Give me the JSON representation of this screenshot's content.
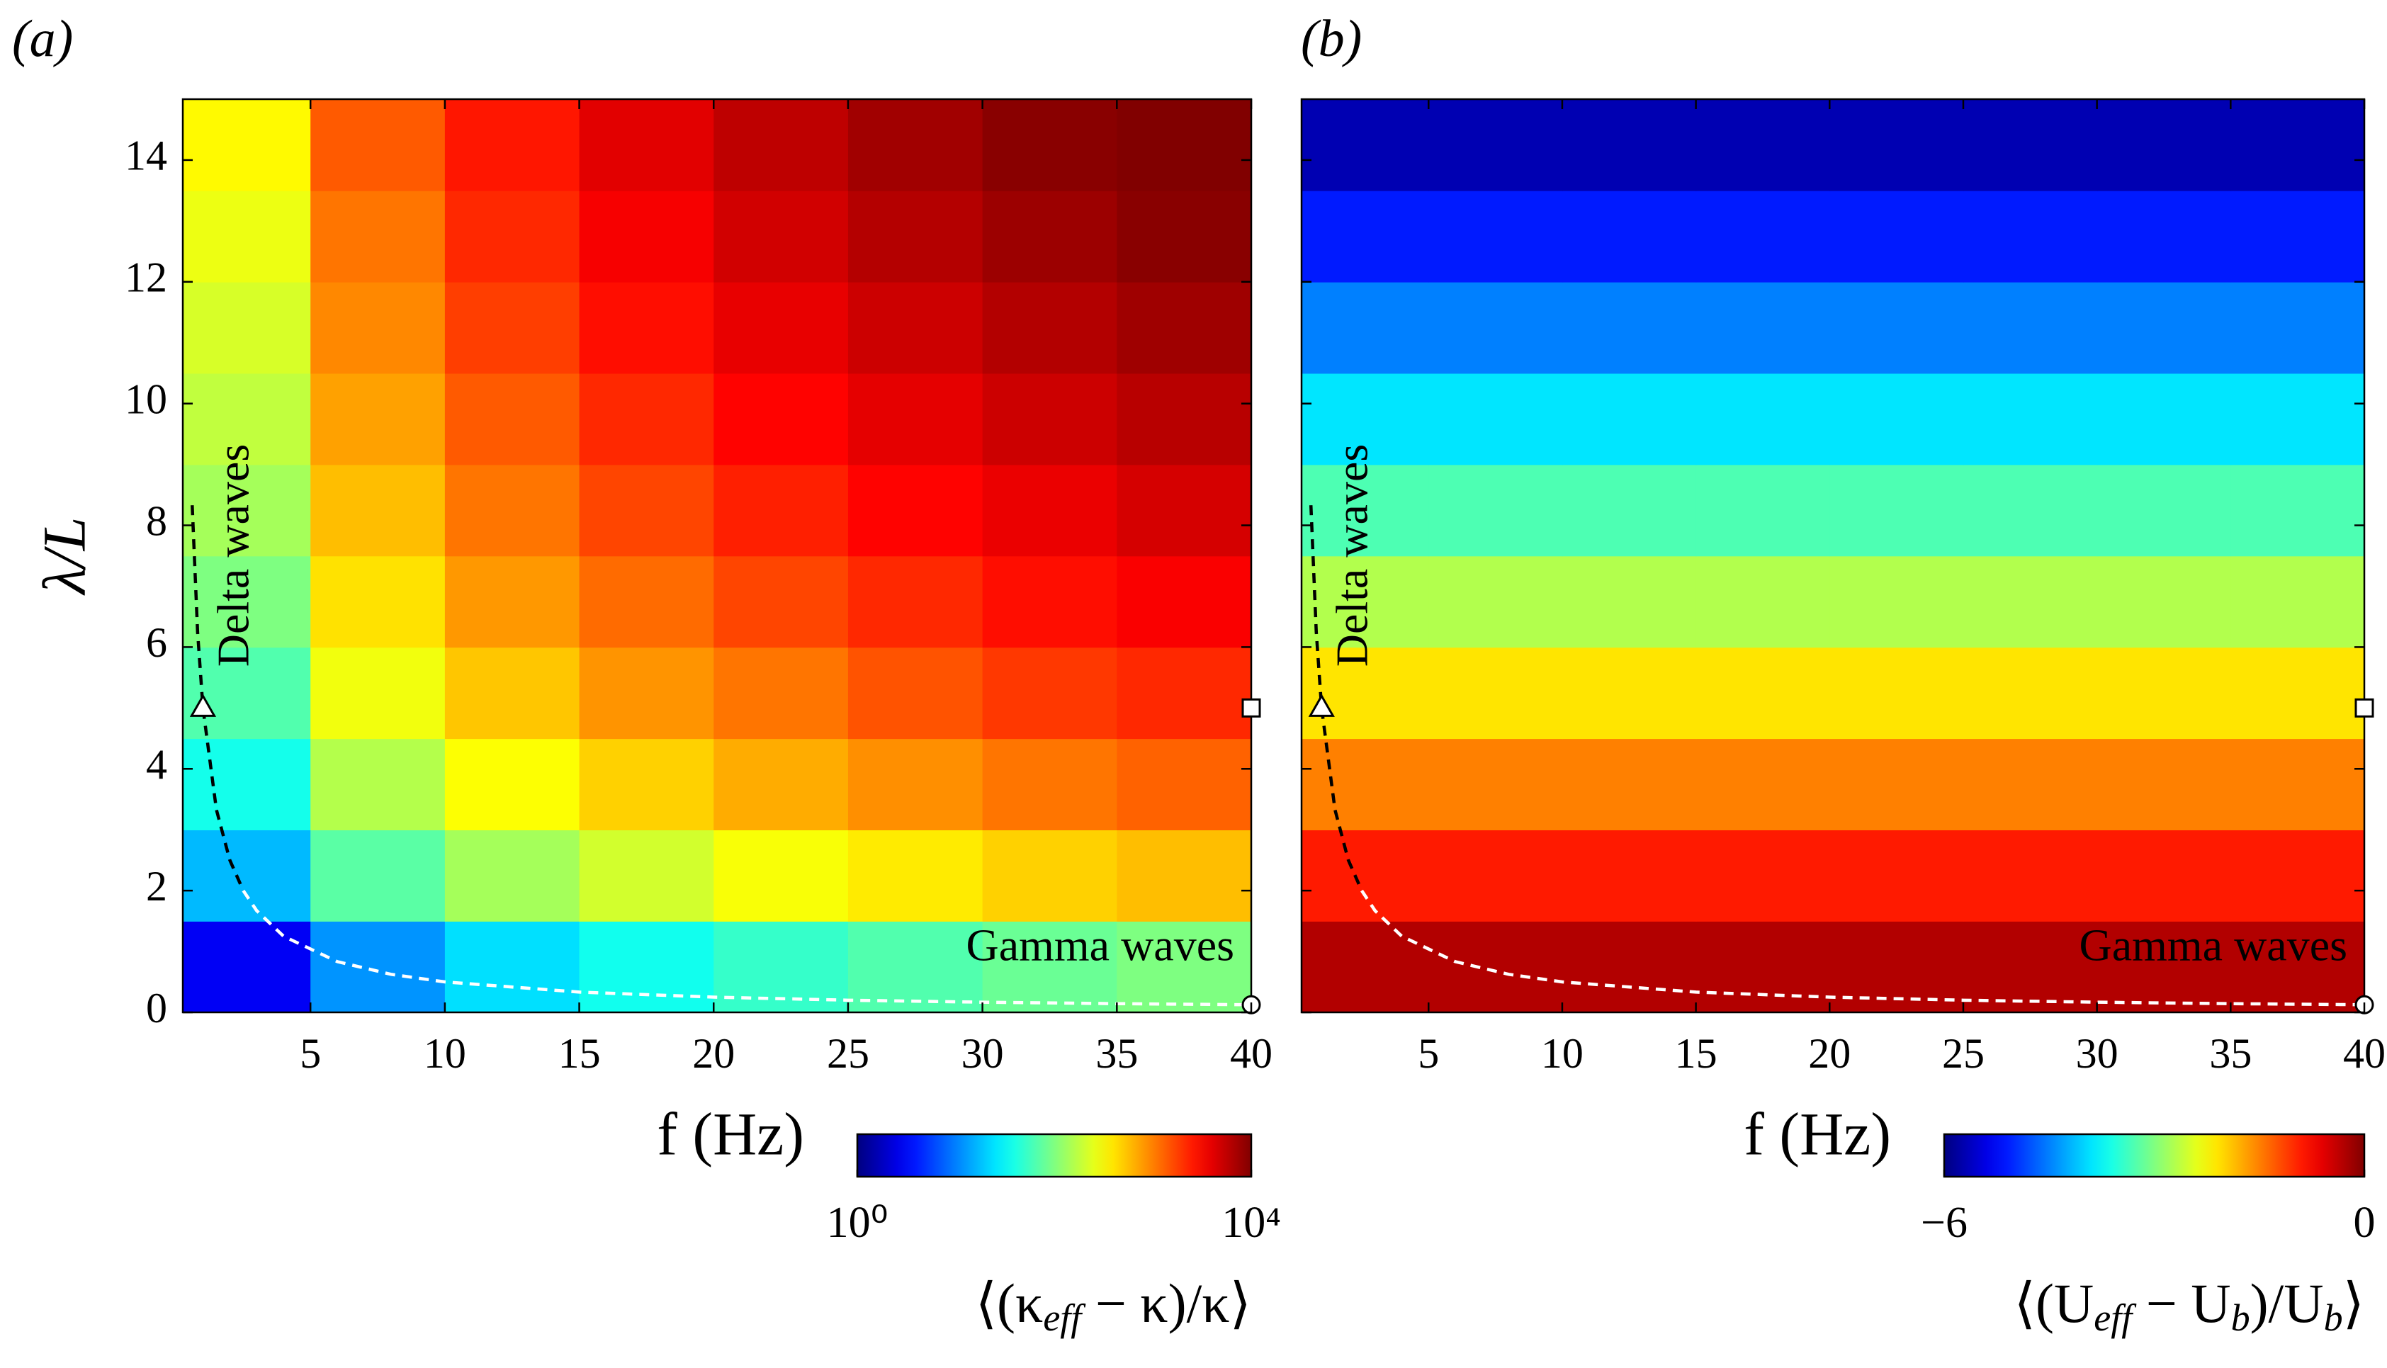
{
  "chart_data": [
    {
      "type": "heatmap",
      "panel_label": "(a)",
      "xlabel": "f (Hz)",
      "ylabel": "λ/L",
      "x": [
        2.5,
        7.5,
        12.5,
        17.5,
        22.5,
        27.5,
        32.5,
        37.5
      ],
      "y": [
        0.75,
        2.25,
        3.75,
        5.25,
        6.75,
        8.25,
        9.75,
        11.25,
        12.75,
        14.25
      ],
      "values": [
        [
          2.9,
          12,
          24,
          37,
          51,
          66,
          82,
          99
        ],
        [
          17,
          71,
          140,
          210,
          300,
          380,
          480,
          570
        ],
        [
          38,
          160,
          310,
          480,
          670,
          870,
          1100,
          1300
        ],
        [
          66,
          280,
          530,
          830,
          1100,
          1500,
          1900,
          2200
        ],
        [
          99,
          410,
          800,
          1200,
          1700,
          2200,
          2800,
          3300
        ],
        [
          140,
          570,
          1100,
          1700,
          2400,
          3100,
          3800,
          4600
        ],
        [
          180,
          740,
          1400,
          2200,
          3100,
          4000,
          5000,
          6000
        ],
        [
          220,
          930,
          1800,
          2800,
          3900,
          5000,
          6300,
          7500
        ],
        [
          270,
          1100,
          2200,
          3400,
          4800,
          6200,
          7700,
          9200
        ],
        [
          330,
          1400,
          2600,
          4100,
          5700,
          7400,
          9200,
          9900
        ]
      ],
      "xlim": [
        0.25,
        40
      ],
      "ylim": [
        0,
        15
      ],
      "xticks": [
        5,
        10,
        15,
        20,
        25,
        30,
        35,
        40
      ],
      "yticks": [
        0,
        2,
        4,
        6,
        8,
        10,
        12,
        14
      ],
      "show_ytick_labels": true,
      "colormap": "jet",
      "color_scale": "log",
      "clim": [
        1,
        10000
      ],
      "colorbar_ticks": [
        {
          "value": 1,
          "label": "10⁰"
        },
        {
          "value": 10000,
          "label": "10⁴"
        }
      ],
      "colorbar_label": [
        "⟨(κ",
        "eff",
        " − κ)/κ⟩"
      ],
      "annotations": [
        {
          "text": "Delta waves",
          "color": "#000000"
        },
        {
          "text": "Gamma waves",
          "color": "#000000"
        }
      ],
      "curves": [
        {
          "color": "#000000",
          "x": [
            0.6,
            0.8,
            1,
            1.5,
            2,
            2.5
          ],
          "y": [
            8.33,
            6.25,
            5,
            3.33,
            2.5,
            2
          ]
        },
        {
          "color": "#ffffff",
          "x": [
            2.5,
            3,
            4,
            6,
            8,
            10,
            15,
            20,
            25,
            30,
            35,
            40
          ],
          "y": [
            2,
            1.67,
            1.25,
            0.833,
            0.625,
            0.5,
            0.333,
            0.25,
            0.2,
            0.167,
            0.143,
            0.125
          ]
        }
      ],
      "markers": [
        {
          "shape": "triangle",
          "x": 1,
          "y": 5
        },
        {
          "shape": "square",
          "x": 40,
          "y": 5
        },
        {
          "shape": "circle",
          "x": 40,
          "y": 0.125
        }
      ]
    },
    {
      "type": "heatmap",
      "panel_label": "(b)",
      "xlabel": "f (Hz)",
      "x": [
        2.5,
        7.5,
        12.5,
        17.5,
        22.5,
        27.5,
        32.5,
        37.5
      ],
      "y": [
        0.75,
        2.25,
        3.75,
        5.25,
        6.75,
        8.25,
        9.75,
        11.25,
        12.75,
        14.25
      ],
      "values": [
        [
          -0.3,
          -0.3,
          -0.3,
          -0.3,
          -0.3,
          -0.3,
          -0.3,
          -0.3
        ],
        [
          -0.9,
          -0.9,
          -0.9,
          -0.9,
          -0.9,
          -0.9,
          -0.9,
          -0.9
        ],
        [
          -1.5,
          -1.5,
          -1.5,
          -1.5,
          -1.5,
          -1.5,
          -1.5,
          -1.5
        ],
        [
          -2.1,
          -2.1,
          -2.1,
          -2.1,
          -2.1,
          -2.1,
          -2.1,
          -2.1
        ],
        [
          -2.7,
          -2.7,
          -2.7,
          -2.7,
          -2.7,
          -2.7,
          -2.7,
          -2.7
        ],
        [
          -3.3,
          -3.3,
          -3.3,
          -3.3,
          -3.3,
          -3.3,
          -3.3,
          -3.3
        ],
        [
          -3.9,
          -3.9,
          -3.9,
          -3.9,
          -3.9,
          -3.9,
          -3.9,
          -3.9
        ],
        [
          -4.5,
          -4.5,
          -4.5,
          -4.5,
          -4.5,
          -4.5,
          -4.5,
          -4.5
        ],
        [
          -5.1,
          -5.1,
          -5.1,
          -5.1,
          -5.1,
          -5.1,
          -5.1,
          -5.1
        ],
        [
          -5.7,
          -5.7,
          -5.7,
          -5.7,
          -5.7,
          -5.7,
          -5.7,
          -5.7
        ]
      ],
      "xlim": [
        0.25,
        40
      ],
      "ylim": [
        0,
        15
      ],
      "xticks": [
        5,
        10,
        15,
        20,
        25,
        30,
        35,
        40
      ],
      "yticks": [
        0,
        2,
        4,
        6,
        8,
        10,
        12,
        14
      ],
      "show_ytick_labels": false,
      "colormap": "jet",
      "color_scale": "linear",
      "clim": [
        -6,
        0
      ],
      "colorbar_ticks": [
        {
          "value": -6,
          "label": "−6"
        },
        0
      ],
      "colorbar_label": [
        "⟨(U",
        "eff",
        " − U",
        "b",
        ")/U",
        "b",
        "⟩"
      ],
      "annotations": [
        {
          "text": "Delta waves",
          "color": "#000000"
        },
        {
          "text": "Gamma waves",
          "color": "#ffffff"
        }
      ],
      "curves": [
        {
          "color": "#000000",
          "x": [
            0.6,
            0.8,
            1,
            1.5,
            2,
            2.5
          ],
          "y": [
            8.33,
            6.25,
            5,
            3.33,
            2.5,
            2
          ]
        },
        {
          "color": "#ffffff",
          "x": [
            2.5,
            3,
            4,
            6,
            8,
            10,
            15,
            20,
            25,
            30,
            35,
            40
          ],
          "y": [
            2,
            1.67,
            1.25,
            0.833,
            0.625,
            0.5,
            0.333,
            0.25,
            0.2,
            0.167,
            0.143,
            0.125
          ]
        }
      ],
      "markers": [
        {
          "shape": "triangle",
          "x": 1,
          "y": 5
        },
        {
          "shape": "square",
          "x": 40,
          "y": 5
        },
        {
          "shape": "circle",
          "x": 40,
          "y": 0.125
        }
      ]
    }
  ]
}
